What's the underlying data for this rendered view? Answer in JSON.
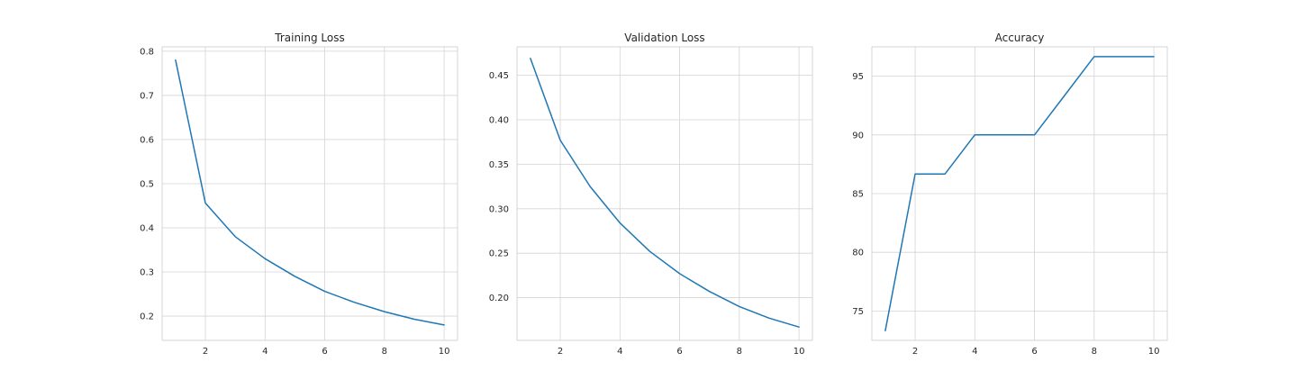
{
  "chart_data": [
    {
      "type": "line",
      "title": "Training Loss",
      "xlabel": "",
      "ylabel": "",
      "xlim": [
        0.55,
        10.45
      ],
      "ylim": [
        0.145,
        0.81
      ],
      "xticks": [
        2,
        4,
        6,
        8,
        10
      ],
      "yticks": [
        0.2,
        0.3,
        0.4,
        0.5,
        0.6,
        0.7,
        0.8
      ],
      "ytick_labels": [
        "0.2",
        "0.3",
        "0.4",
        "0.5",
        "0.6",
        "0.7",
        "0.8"
      ],
      "grid": true,
      "x": [
        1,
        2,
        3,
        4,
        5,
        6,
        7,
        8,
        9,
        10
      ],
      "series": [
        {
          "values": [
            0.78,
            0.456,
            0.38,
            0.33,
            0.29,
            0.256,
            0.231,
            0.21,
            0.193,
            0.18
          ],
          "color": "#1f77b4"
        }
      ]
    },
    {
      "type": "line",
      "title": "Validation Loss",
      "xlabel": "",
      "ylabel": "",
      "xlim": [
        0.55,
        10.45
      ],
      "ylim": [
        0.152,
        0.482
      ],
      "xticks": [
        2,
        4,
        6,
        8,
        10
      ],
      "yticks": [
        0.2,
        0.25,
        0.3,
        0.35,
        0.4,
        0.45
      ],
      "ytick_labels": [
        "0.20",
        "0.25",
        "0.30",
        "0.35",
        "0.40",
        "0.45"
      ],
      "grid": true,
      "x": [
        1,
        2,
        3,
        4,
        5,
        6,
        7,
        8,
        9,
        10
      ],
      "series": [
        {
          "values": [
            0.469,
            0.377,
            0.325,
            0.284,
            0.252,
            0.227,
            0.207,
            0.19,
            0.177,
            0.167
          ],
          "color": "#1f77b4"
        }
      ]
    },
    {
      "type": "line",
      "title": "Accuracy",
      "xlabel": "",
      "ylabel": "",
      "xlim": [
        0.55,
        10.45
      ],
      "ylim": [
        72.5,
        97.5
      ],
      "xticks": [
        2,
        4,
        6,
        8,
        10
      ],
      "yticks": [
        75,
        80,
        85,
        90,
        95
      ],
      "ytick_labels": [
        "75",
        "80",
        "85",
        "90",
        "95"
      ],
      "grid": true,
      "x": [
        1,
        2,
        3,
        4,
        5,
        6,
        7,
        8,
        9,
        10
      ],
      "series": [
        {
          "values": [
            73.33,
            86.67,
            86.67,
            90.0,
            90.0,
            90.0,
            93.33,
            96.67,
            96.67,
            96.67
          ],
          "color": "#1f77b4"
        }
      ]
    }
  ]
}
